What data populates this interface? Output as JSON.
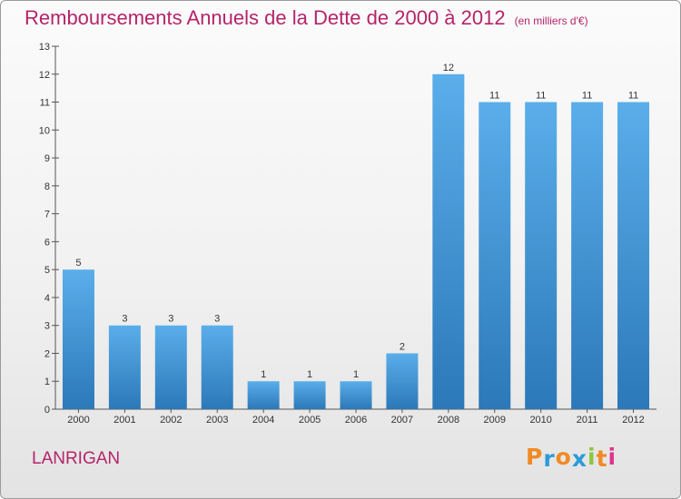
{
  "chart_data": {
    "type": "bar",
    "title": "Remboursements Annuels de la Dette de 2000 à 2012",
    "unit": "(en milliers d'€)",
    "categories": [
      "2000",
      "2001",
      "2002",
      "2003",
      "2004",
      "2005",
      "2006",
      "2007",
      "2008",
      "2009",
      "2010",
      "2011",
      "2012"
    ],
    "values": [
      5,
      3,
      3,
      3,
      1,
      1,
      1,
      2,
      12,
      11,
      11,
      11,
      11
    ],
    "ylim": [
      0,
      13
    ],
    "yticks": [
      0,
      1,
      2,
      3,
      4,
      5,
      6,
      7,
      8,
      9,
      10,
      11,
      12,
      13
    ],
    "grid": false,
    "xlabel": "",
    "ylabel": ""
  },
  "commune": "LANRIGAN",
  "logo": {
    "text": "Proxiti",
    "letters": [
      "P",
      "r",
      "o",
      "x",
      "i",
      "t",
      "i"
    ],
    "colors": [
      "#f08a24",
      "#2d9bd8",
      "#f08a24",
      "#2d9bd8",
      "#8cc63f",
      "#f08a24",
      "#e0338f"
    ]
  },
  "colors": {
    "title": "#b5246a",
    "bar_top": "#5aaeea",
    "bar_bottom": "#2c78b8",
    "axis": "#555555"
  }
}
